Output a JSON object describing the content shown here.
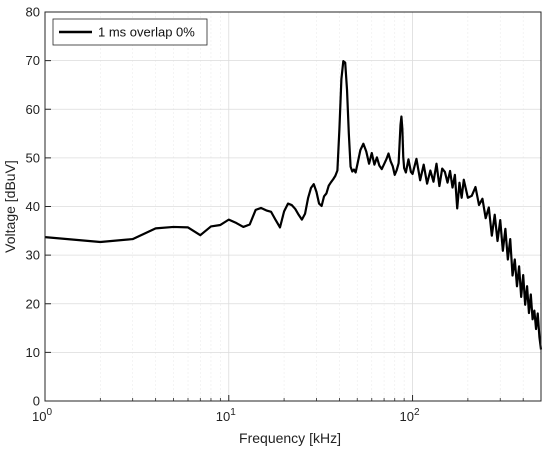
{
  "chart_data": {
    "type": "line",
    "xlabel": "Frequency [kHz]",
    "ylabel": "Voltage [dBuV]",
    "xscale": "log",
    "xlim": [
      1,
      500
    ],
    "ylim": [
      0,
      80
    ],
    "y_ticks": [
      0,
      10,
      20,
      30,
      40,
      50,
      60,
      70,
      80
    ],
    "x_ticks": [
      {
        "value": 1,
        "base": "10",
        "exp": "0"
      },
      {
        "value": 10,
        "base": "10",
        "exp": "1"
      },
      {
        "value": 100,
        "base": "10",
        "exp": "2"
      }
    ],
    "grid": true,
    "legend_position": "top-left",
    "series": [
      {
        "name": "1 ms overlap 0%",
        "color": "#000000",
        "x": [
          1,
          2,
          3,
          4,
          5,
          6,
          7,
          8,
          9,
          10,
          11,
          12,
          13,
          14,
          15,
          16,
          17,
          18,
          19,
          20,
          21,
          22,
          23,
          24,
          25,
          26,
          27,
          28,
          29,
          30,
          31,
          32,
          33,
          34,
          35,
          36,
          37,
          38,
          39,
          40,
          41,
          42,
          43,
          44,
          45,
          46,
          47,
          48,
          49,
          50,
          52,
          54,
          56,
          58,
          60,
          62,
          64,
          66,
          68,
          70,
          72,
          74,
          76,
          78,
          80,
          82,
          84,
          86,
          87,
          88,
          89,
          90,
          92,
          95,
          98,
          100,
          105,
          110,
          115,
          120,
          125,
          130,
          135,
          140,
          145,
          150,
          155,
          160,
          165,
          170,
          175,
          180,
          185,
          190,
          200,
          210,
          220,
          230,
          240,
          250,
          260,
          270,
          280,
          290,
          300,
          310,
          320,
          330,
          340,
          350,
          360,
          370,
          380,
          390,
          400,
          410,
          420,
          430,
          440,
          450,
          460,
          470,
          480,
          490,
          500
        ],
        "y": [
          33.7,
          32.7,
          33.3,
          35.5,
          35.8,
          35.7,
          34.1,
          35.9,
          36.2,
          37.3,
          36.6,
          35.8,
          36.3,
          39.3,
          39.7,
          39.2,
          38.9,
          37.2,
          35.7,
          39.0,
          40.6,
          40.3,
          39.5,
          38.3,
          37.3,
          38.5,
          41.7,
          43.8,
          44.6,
          43.0,
          40.6,
          40.1,
          42.1,
          42.7,
          44.3,
          45.0,
          45.6,
          46.3,
          47.4,
          56.0,
          66.2,
          69.9,
          69.6,
          64.0,
          55.0,
          48.2,
          47.2,
          47.6,
          47.0,
          48.5,
          51.6,
          52.9,
          51.3,
          48.8,
          51.0,
          48.6,
          50.1,
          48.4,
          47.7,
          48.7,
          49.7,
          50.9,
          49.3,
          48.3,
          46.5,
          47.5,
          48.9,
          56.8,
          58.5,
          56.0,
          50.2,
          47.9,
          47.0,
          49.7,
          47.1,
          46.7,
          49.8,
          45.4,
          48.6,
          44.7,
          47.4,
          45.1,
          48.8,
          44.2,
          47.8,
          47.1,
          44.9,
          47.3,
          43.9,
          46.5,
          39.6,
          44.9,
          41.8,
          45.5,
          41.8,
          42.2,
          44.0,
          40.3,
          41.6,
          37.6,
          39.8,
          34.0,
          38.3,
          32.9,
          37.2,
          30.9,
          35.4,
          29.1,
          33.3,
          25.8,
          29.1,
          23.6,
          27.7,
          21.4,
          25.9,
          19.8,
          23.6,
          18.1,
          21.9,
          16.8,
          18.6,
          14.8,
          18.0,
          13.2,
          10.6
        ]
      }
    ]
  }
}
